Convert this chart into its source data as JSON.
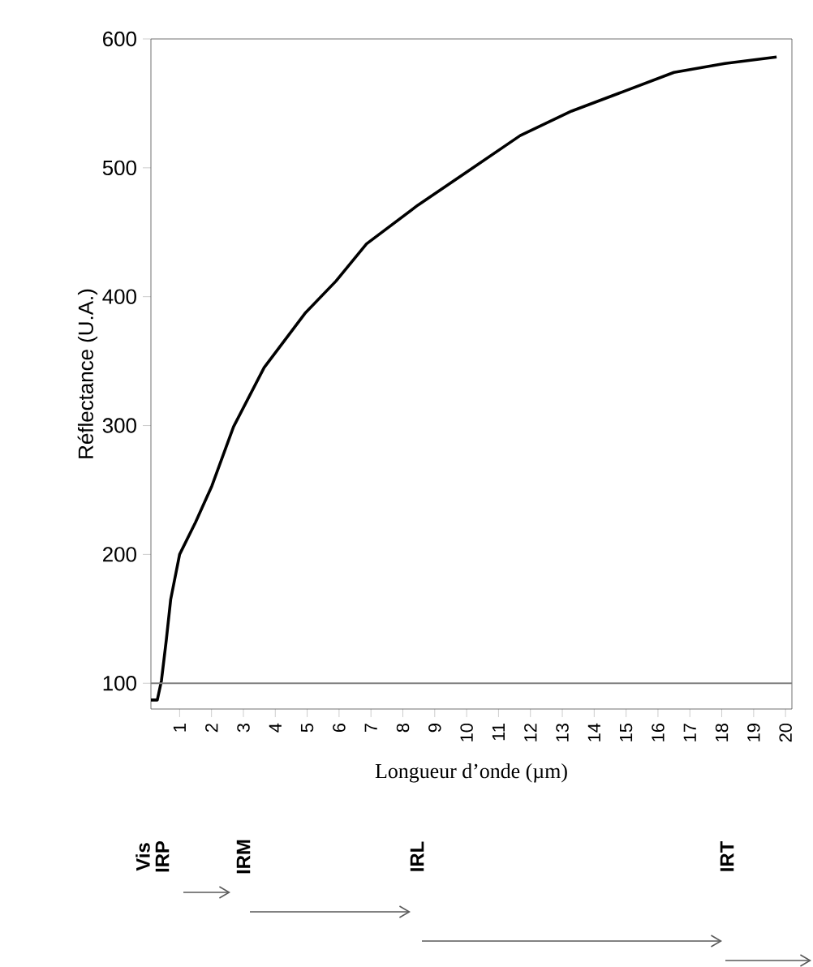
{
  "chart_data": {
    "type": "line",
    "xlabel": "Longueur d’onde (µm)",
    "ylabel": "Réflectance (U.A.)",
    "series": [
      {
        "color": "#000000",
        "x": [
          0.1,
          0.3,
          0.43,
          0.58,
          0.72,
          1.0,
          1.5,
          2.01,
          2.69,
          3.65,
          4.93,
          5.9,
          6.86,
          8.47,
          10.08,
          11.68,
          13.29,
          14.9,
          16.5,
          18.1,
          19.72
        ],
        "values": [
          87,
          87,
          102,
          133,
          165,
          200,
          225,
          253,
          299,
          345,
          387,
          412,
          441,
          471,
          498,
          525,
          544,
          559,
          574,
          581,
          586
        ]
      }
    ],
    "xlim": [
      0.1,
      20.2
    ],
    "ylim": [
      80,
      600
    ],
    "xticks": [
      1,
      2,
      3,
      4,
      5,
      6,
      7,
      8,
      9,
      10,
      11,
      12,
      13,
      14,
      15,
      16,
      17,
      18,
      19,
      20
    ],
    "yticks": [
      100,
      200,
      300,
      400,
      500,
      600
    ],
    "ref_lines": [
      {
        "axis": "y",
        "value": 100,
        "color": "#808080"
      }
    ],
    "annotations": [
      "Vis",
      "IRP",
      "IRM",
      "IRL",
      "IRT"
    ],
    "marker": "none",
    "line_style": "solid"
  }
}
